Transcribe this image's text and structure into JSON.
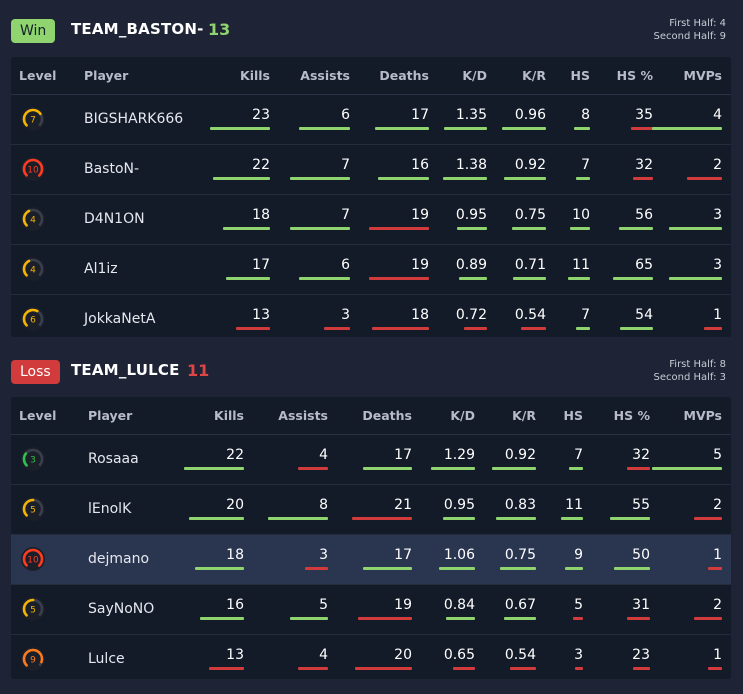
{
  "columns": [
    "Level",
    "Player",
    "Kills",
    "Assists",
    "Deaths",
    "K/D",
    "K/R",
    "HS",
    "HS %",
    "MVPs"
  ],
  "colors": {
    "good": "#8fd46f",
    "bad": "#d13b3b",
    "highlight": "#2a3550"
  },
  "teams": [
    {
      "result": "Win",
      "name": "TEAM_BASTON-",
      "score": "13",
      "first_half": "First Half: 4",
      "second_half": "Second Half: 9",
      "players": [
        {
          "level": "7",
          "level_color": "#f5b400",
          "level_fill": 0.7,
          "name": "BIGSHARK666",
          "kills": "23",
          "assists": "6",
          "deaths": "17",
          "kd": "1.35",
          "kr": "0.96",
          "hs": "8",
          "hsp": "35",
          "mvps": "4"
        },
        {
          "level": "10",
          "level_color": "#ff3b1f",
          "level_fill": 1.0,
          "name": "BastoN-",
          "kills": "22",
          "assists": "7",
          "deaths": "16",
          "kd": "1.38",
          "kr": "0.92",
          "hs": "7",
          "hsp": "32",
          "mvps": "2"
        },
        {
          "level": "4",
          "level_color": "#f5b400",
          "level_fill": 0.4,
          "name": "D4N1ON",
          "kills": "18",
          "assists": "7",
          "deaths": "19",
          "kd": "0.95",
          "kr": "0.75",
          "hs": "10",
          "hsp": "56",
          "mvps": "3"
        },
        {
          "level": "4",
          "level_color": "#f5b400",
          "level_fill": 0.4,
          "name": "Al1iz",
          "kills": "17",
          "assists": "6",
          "deaths": "19",
          "kd": "0.89",
          "kr": "0.71",
          "hs": "11",
          "hsp": "65",
          "mvps": "3"
        },
        {
          "level": "6",
          "level_color": "#f5b400",
          "level_fill": 0.6,
          "name": "JokkaNetA",
          "kills": "13",
          "assists": "3",
          "deaths": "18",
          "kd": "0.72",
          "kr": "0.54",
          "hs": "7",
          "hsp": "54",
          "mvps": "1"
        }
      ]
    },
    {
      "result": "Loss",
      "name": "TEAM_LULCE",
      "score": "11",
      "first_half": "First Half: 8",
      "second_half": "Second Half: 3",
      "players": [
        {
          "level": "3",
          "level_color": "#2fc14a",
          "level_fill": 0.3,
          "name": "Rosaaa",
          "kills": "22",
          "assists": "4",
          "deaths": "17",
          "kd": "1.29",
          "kr": "0.92",
          "hs": "7",
          "hsp": "32",
          "mvps": "5"
        },
        {
          "level": "5",
          "level_color": "#f5b400",
          "level_fill": 0.5,
          "name": "lEnolK",
          "kills": "20",
          "assists": "8",
          "deaths": "21",
          "kd": "0.95",
          "kr": "0.83",
          "hs": "11",
          "hsp": "55",
          "mvps": "2"
        },
        {
          "level": "10",
          "level_color": "#ff3b1f",
          "level_fill": 1.0,
          "name": "dejmano",
          "kills": "18",
          "assists": "3",
          "deaths": "17",
          "kd": "1.06",
          "kr": "0.75",
          "hs": "9",
          "hsp": "50",
          "mvps": "1"
        },
        {
          "level": "5",
          "level_color": "#f5b400",
          "level_fill": 0.5,
          "name": "SayNoNO",
          "kills": "16",
          "assists": "5",
          "deaths": "19",
          "kd": "0.84",
          "kr": "0.67",
          "hs": "5",
          "hsp": "31",
          "mvps": "2"
        },
        {
          "level": "9",
          "level_color": "#ff7a1a",
          "level_fill": 0.9,
          "name": "Lulce",
          "kills": "13",
          "assists": "4",
          "deaths": "20",
          "kd": "0.65",
          "kr": "0.54",
          "hs": "3",
          "hsp": "23",
          "mvps": "1"
        }
      ]
    }
  ]
}
